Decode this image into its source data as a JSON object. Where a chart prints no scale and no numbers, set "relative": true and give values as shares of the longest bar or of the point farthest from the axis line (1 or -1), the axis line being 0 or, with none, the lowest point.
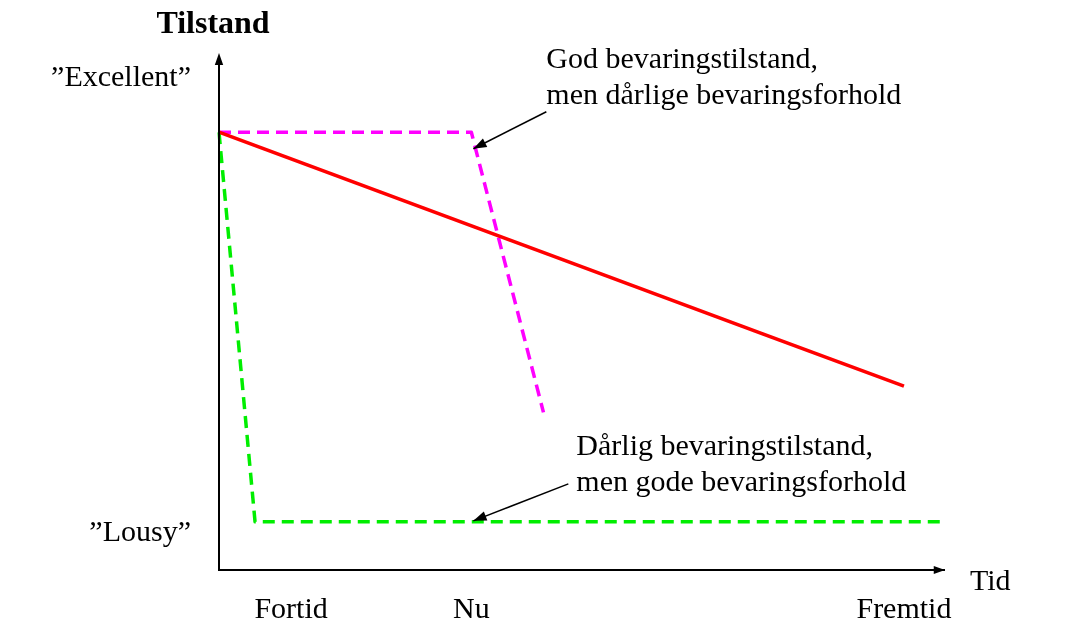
{
  "chart_data": {
    "type": "line",
    "ylabel": "Tilstand",
    "xlabel": "Tid",
    "relative": true,
    "categories": [
      null,
      null,
      "Fortid",
      null,
      null,
      null,
      null,
      "Nu",
      null,
      null,
      null,
      null,
      null,
      null,
      null,
      null,
      null,
      null,
      null,
      "Fremtid",
      null
    ],
    "grid": false,
    "legend": false,
    "marker": "none",
    "series": [
      {
        "color": "#ff0000",
        "line_style": "solid",
        "values": [
          1,
          null,
          null,
          null,
          null,
          null,
          null,
          null,
          null,
          null,
          null,
          null,
          null,
          null,
          null,
          null,
          null,
          null,
          null,
          0.42,
          null
        ]
      },
      {
        "color": "#ff00ff",
        "line_style": "dashed",
        "values": [
          1,
          null,
          null,
          null,
          null,
          null,
          null,
          1,
          null,
          0.36,
          null,
          null,
          null,
          null,
          null,
          null,
          null,
          null,
          null,
          null,
          null
        ]
      },
      {
        "color": "#00ee00",
        "line_style": "dashed",
        "values": [
          1,
          0.11,
          null,
          null,
          null,
          null,
          null,
          null,
          null,
          null,
          null,
          null,
          null,
          null,
          null,
          null,
          null,
          null,
          null,
          null,
          0.11
        ]
      }
    ],
    "annotations": [
      "”Excellent”",
      "”Lousy”",
      {
        "text": "God bevaringstilstand,\nmen dårlige bevaringsforhold",
        "x": "Nu",
        "y": 0.96
      },
      {
        "text": "Dårlig bevaringstilstand,\nmen gode bevaringsforhold",
        "x": "Nu",
        "y": 0.11
      }
    ]
  }
}
